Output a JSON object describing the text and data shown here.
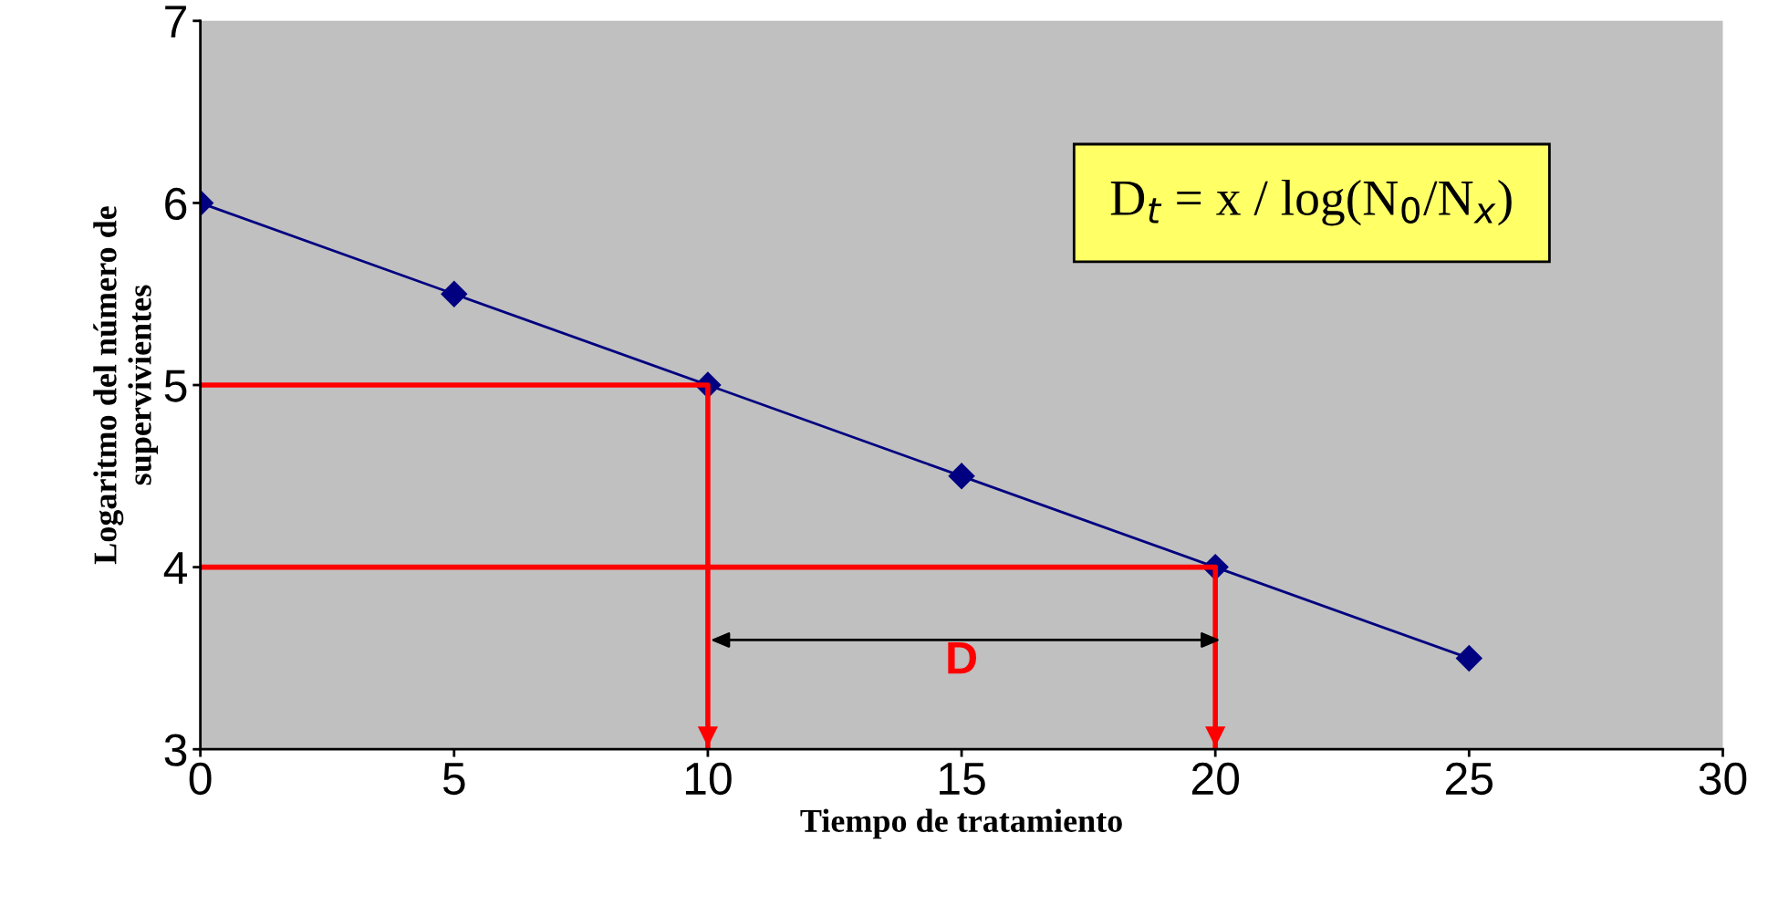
{
  "chart_data": {
    "type": "line",
    "xlabel": "Tiempo de tratamiento",
    "ylabel": "Logaritmo del número de\nsupervivientes",
    "xlim": [
      0,
      30
    ],
    "xticks": [
      0,
      5,
      10,
      15,
      20,
      25,
      30
    ],
    "ylim": [
      3,
      7
    ],
    "yticks": [
      3,
      4,
      5,
      6,
      7
    ],
    "grid": false,
    "legend": false,
    "series": [
      {
        "color": "#000080",
        "marker": "diamond",
        "x": [
          0,
          5,
          10,
          15,
          20,
          25
        ],
        "values": [
          6.0,
          5.5,
          5.0,
          4.5,
          4.0,
          3.5
        ]
      },
      {
        "color": "#ff0000",
        "marker": "none",
        "x": [
          0,
          10,
          10
        ],
        "values": [
          5,
          5,
          3
        ]
      },
      {
        "color": "#ff0000",
        "marker": "none",
        "x": [
          0,
          20,
          20
        ],
        "values": [
          4,
          4,
          3
        ]
      }
    ],
    "annotations": [
      "D",
      "D$_{t}$ = x / log(N$_{0}$/N$_{x}$)"
    ]
  }
}
